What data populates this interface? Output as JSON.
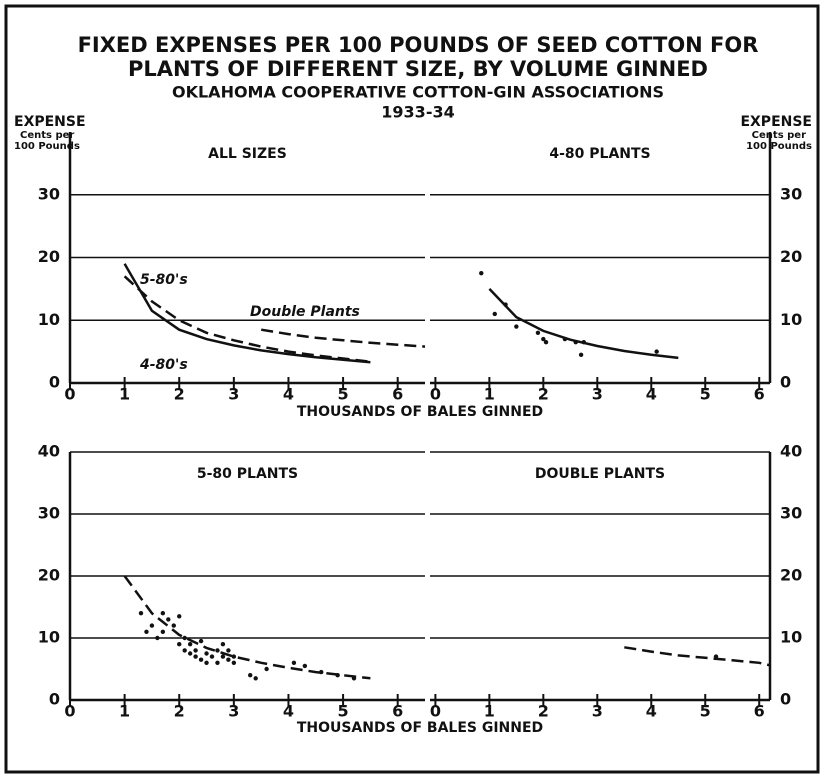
{
  "title": [
    "FIXED EXPENSES PER 100 POUNDS OF SEED COTTON FOR",
    "PLANTS OF DIFFERENT SIZE, BY VOLUME GINNED"
  ],
  "subtitle": "OKLAHOMA COOPERATIVE COTTON-GIN ASSOCIATIONS",
  "period": "1933-34",
  "y_label": "EXPENSE",
  "y_unit": [
    "Cents per",
    "100 Pounds"
  ],
  "x_label": "THOUSANDS OF BALES GINNED",
  "chart_data": [
    {
      "type": "line",
      "title": "ALL SIZES",
      "axis_side": "left",
      "grid": true,
      "xlim": [
        0,
        6.5
      ],
      "xticks": [
        0,
        1,
        2,
        3,
        4,
        5,
        6
      ],
      "ylim": [
        0,
        40
      ],
      "yticks": [
        0,
        10,
        20,
        30
      ],
      "series": [
        {
          "name": "5-80's",
          "color": "#111",
          "dash": true,
          "x": [
            1,
            1.5,
            2,
            2.5,
            3,
            3.5,
            4,
            4.5,
            5,
            5.5
          ],
          "values": [
            17,
            13,
            10,
            8,
            6.8,
            5.8,
            5,
            4.4,
            3.9,
            3.4
          ]
        },
        {
          "name": "4-80's",
          "color": "#111",
          "dash": false,
          "x": [
            1,
            1.5,
            2,
            2.5,
            3,
            3.5,
            4,
            4.5,
            5,
            5.5
          ],
          "values": [
            19,
            11.5,
            8.5,
            7,
            6,
            5.2,
            4.6,
            4.1,
            3.7,
            3.3
          ]
        },
        {
          "name": "Double Plants",
          "color": "#111",
          "dash": true,
          "x": [
            3.5,
            4,
            4.5,
            5,
            5.5,
            6,
            6.5
          ],
          "values": [
            8.5,
            7.8,
            7.2,
            6.8,
            6.4,
            6.1,
            5.8
          ]
        }
      ]
    },
    {
      "type": "scatter",
      "title": "4-80 PLANTS",
      "axis_side": "right",
      "grid": true,
      "xlim": [
        -0.1,
        6.2
      ],
      "xticks": [
        0,
        1,
        2,
        3,
        4,
        5,
        6
      ],
      "ylim": [
        0,
        40
      ],
      "yticks": [
        0,
        10,
        20,
        30
      ],
      "series": [
        {
          "color": "#111",
          "kind": "points",
          "x": [
            0.85,
            1.1,
            1.3,
            1.5,
            1.9,
            2.0,
            2.05,
            2.4,
            2.6,
            2.7,
            2.75,
            4.1
          ],
          "values": [
            17.5,
            11,
            12.5,
            9,
            8,
            7,
            6.5,
            7,
            6.5,
            4.5,
            6.5,
            5
          ]
        },
        {
          "color": "#111",
          "kind": "curve",
          "dash": false,
          "x": [
            1,
            1.5,
            2,
            2.5,
            3,
            3.5,
            4,
            4.5
          ],
          "values": [
            15,
            10.5,
            8.3,
            6.9,
            5.9,
            5.1,
            4.5,
            4
          ]
        }
      ]
    },
    {
      "type": "scatter",
      "title": "5-80 PLANTS",
      "axis_side": "left",
      "grid": true,
      "xlim": [
        0,
        6.5
      ],
      "xticks": [
        0,
        1,
        2,
        3,
        4,
        5,
        6
      ],
      "ylim": [
        0,
        40
      ],
      "yticks": [
        0,
        10,
        20,
        30,
        40
      ],
      "series": [
        {
          "color": "#111",
          "kind": "points",
          "x": [
            1.3,
            1.4,
            1.5,
            1.6,
            1.7,
            1.7,
            1.8,
            1.9,
            2.0,
            2.0,
            2.1,
            2.1,
            2.2,
            2.2,
            2.3,
            2.3,
            2.4,
            2.4,
            2.5,
            2.5,
            2.6,
            2.7,
            2.7,
            2.8,
            2.8,
            2.9,
            2.9,
            3.0,
            3.0,
            3.3,
            3.4,
            3.6,
            4.1,
            4.3,
            4.6,
            4.9,
            5.2
          ],
          "values": [
            14,
            11,
            12,
            10,
            11,
            14,
            13,
            12,
            13.5,
            9,
            10,
            8,
            9,
            7.5,
            8,
            7,
            9.5,
            6.5,
            7.5,
            6,
            7,
            8,
            6,
            9,
            7,
            6.5,
            8,
            7,
            6,
            4,
            3.5,
            5,
            6,
            5.5,
            4.5,
            4,
            3.5
          ]
        },
        {
          "color": "#111",
          "kind": "curve",
          "dash": true,
          "x": [
            1,
            1.5,
            2,
            2.5,
            3,
            3.5,
            4,
            4.5,
            5,
            5.5
          ],
          "values": [
            20,
            14,
            10.5,
            8.4,
            7,
            6,
            5.2,
            4.5,
            4,
            3.5
          ]
        }
      ]
    },
    {
      "type": "scatter",
      "title": "DOUBLE PLANTS",
      "axis_side": "right",
      "grid": true,
      "xlim": [
        -0.1,
        6.2
      ],
      "xticks": [
        0,
        1,
        2,
        3,
        4,
        5,
        6
      ],
      "ylim": [
        0,
        40
      ],
      "yticks": [
        0,
        10,
        20,
        30,
        40
      ],
      "series": [
        {
          "color": "#111",
          "kind": "points",
          "x": [
            5.2
          ],
          "values": [
            7
          ]
        },
        {
          "color": "#111",
          "kind": "curve",
          "dash": true,
          "x": [
            3.5,
            4,
            4.5,
            5,
            5.5,
            6,
            6.2
          ],
          "values": [
            8.5,
            7.8,
            7.2,
            6.8,
            6.4,
            6,
            5.6
          ]
        }
      ]
    }
  ]
}
